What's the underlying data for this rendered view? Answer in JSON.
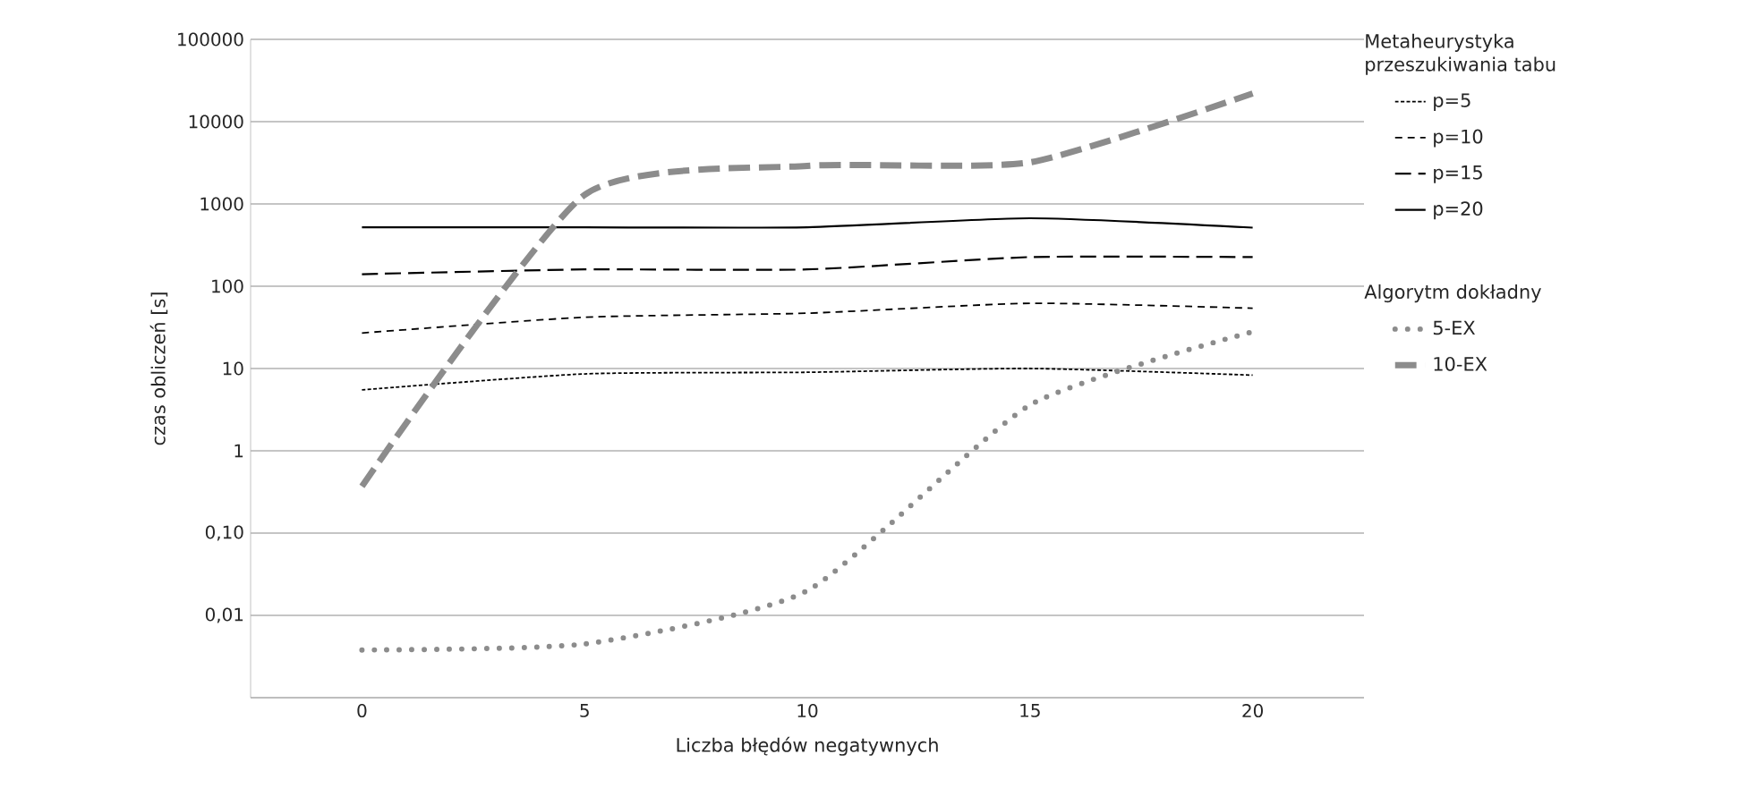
{
  "chart_data": {
    "type": "line",
    "xlabel": "Liczba błędów negatywnych",
    "ylabel": "czas obliczeń [s]",
    "legend_title": "Metaheurystyka przeszukiwania tabu",
    "annotations": [
      "Algorytm dokładny"
    ],
    "x": [
      0,
      5,
      10,
      15,
      20
    ],
    "series": [
      {
        "name": "p=5",
        "color": "#000000",
        "line_style": "dotted",
        "values": [
          5.5,
          8.6,
          9,
          10,
          8.3
        ]
      },
      {
        "name": "p=10",
        "color": "#000000",
        "line_style": "dashed",
        "values": [
          27,
          42,
          47,
          62,
          54
        ]
      },
      {
        "name": "p=15",
        "color": "#000000",
        "line_style": "dashed",
        "values": [
          140,
          160,
          160,
          226,
          226
        ]
      },
      {
        "name": "p=20",
        "color": "#000000",
        "line_style": "solid",
        "values": [
          520,
          520,
          520,
          670,
          515
        ]
      },
      {
        "name": "5-EX",
        "color": "#8c8c8c",
        "line_style": "dotted",
        "values": [
          0.0038,
          0.0045,
          0.02,
          3.6,
          28
        ]
      },
      {
        "name": "10-EX",
        "color": "#8c8c8c",
        "line_style": "dashed",
        "values": [
          0.37,
          1290,
          2900,
          3200,
          22000
        ]
      }
    ],
    "log": "y",
    "grid": "y",
    "legend": "right",
    "xlim": [
      -2.5,
      22.5
    ],
    "xticks": [
      0,
      5,
      10,
      15,
      20
    ],
    "ylim": [
      0.001,
      100000
    ],
    "yticks": [
      {
        "value": 0.001,
        "label": null
      },
      {
        "value": 0.01,
        "label": "0,01"
      },
      {
        "value": 0.1,
        "label": "0,10"
      },
      1,
      10,
      100,
      1000,
      10000,
      100000
    ]
  }
}
